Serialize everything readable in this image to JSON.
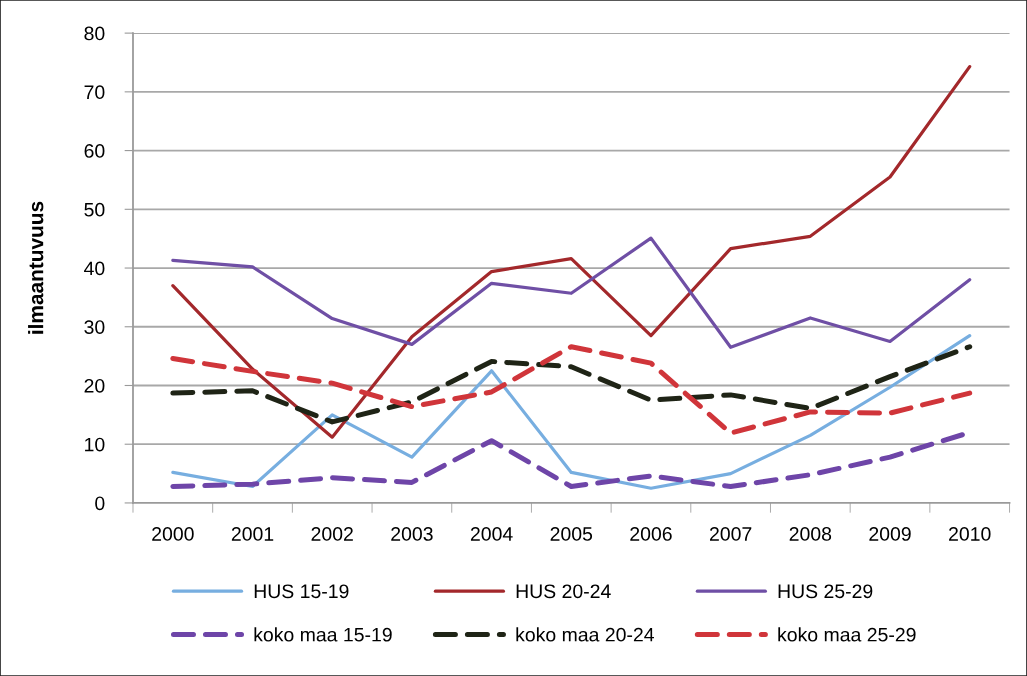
{
  "chart_data": {
    "type": "line",
    "ylabel": "ilmaantuvuus",
    "categories": [
      "2000",
      "2001",
      "2002",
      "2003",
      "2004",
      "2005",
      "2006",
      "2007",
      "2008",
      "2009",
      "2010"
    ],
    "ylim": [
      0,
      80
    ],
    "yticks": [
      0,
      10,
      20,
      30,
      40,
      50,
      60,
      70,
      80
    ],
    "grid": "y",
    "legend": "bottom",
    "series": [
      {
        "name": "HUS 15-19",
        "color": "#77aee0",
        "line_style": "solid",
        "values": [
          5.2,
          2.8,
          15.0,
          7.8,
          22.5,
          5.2,
          2.5,
          5.0,
          11.5,
          19.7,
          28.5
        ]
      },
      {
        "name": "HUS 20-24",
        "color": "#a3282b",
        "line_style": "solid",
        "values": [
          37.0,
          22.8,
          11.2,
          28.3,
          39.4,
          41.6,
          28.5,
          43.3,
          45.4,
          55.5,
          74.3
        ]
      },
      {
        "name": "HUS 25-29",
        "color": "#6f4fa5",
        "line_style": "solid",
        "values": [
          41.3,
          40.2,
          31.4,
          27.0,
          37.4,
          35.7,
          45.1,
          26.5,
          31.5,
          27.5,
          38.0
        ]
      },
      {
        "name": "koko maa 15-19",
        "color": "#6e45a8",
        "line_style": "dashed",
        "values": [
          2.8,
          3.2,
          4.3,
          3.5,
          10.6,
          2.8,
          4.6,
          2.8,
          4.8,
          7.8,
          12.0
        ]
      },
      {
        "name": "koko maa 20-24",
        "color": "#1f2416",
        "line_style": "dashed",
        "values": [
          18.7,
          19.1,
          13.8,
          17.2,
          24.1,
          23.2,
          17.5,
          18.4,
          16.1,
          21.5,
          26.6
        ]
      },
      {
        "name": "koko maa 25-29",
        "color": "#d0353a",
        "line_style": "dashed",
        "values": [
          24.6,
          22.4,
          20.4,
          16.4,
          18.9,
          26.6,
          23.8,
          11.9,
          15.5,
          15.3,
          18.7
        ]
      }
    ]
  }
}
